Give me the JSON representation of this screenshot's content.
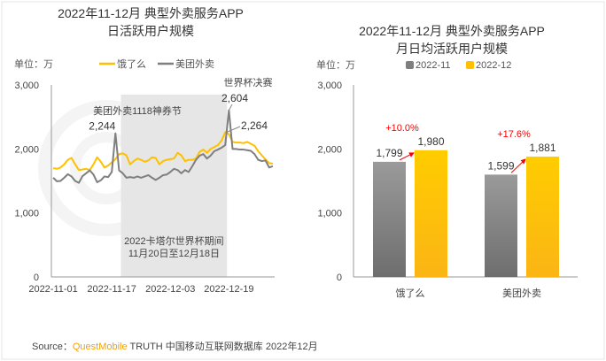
{
  "colors": {
    "eleme": "#FFC000",
    "meituan": "#7F7F7F",
    "growth": "#FF0000",
    "shade": "#E6E6E6",
    "brand": "#F5A000"
  },
  "source": {
    "prefix": "Source：",
    "brand": "QuestMobile",
    "suffix": " TRUTH 中国移动互联网数据库 2022年12月"
  },
  "watermark": "QUESTMOBILE",
  "chart_data": [
    {
      "type": "line",
      "title": "2022年11-12月 典型外卖服务APP",
      "subtitle": "日活跃用户规模",
      "unit_label": "单位：万",
      "legend": "top",
      "ylim": [
        0,
        3000
      ],
      "yticks": [
        "0",
        "1,000",
        "2,000",
        "3,000"
      ],
      "yticks_values": [
        0,
        1000,
        2000,
        3000
      ],
      "xticks": [
        "2022-11-01",
        "2022-11-17",
        "2022-12-03",
        "2022-12-19"
      ],
      "xticks_index": [
        0,
        16,
        32,
        48
      ],
      "x_start": "2022-11-01",
      "x_end": "2022-12-31",
      "shaded_range": [
        "2022-11-20",
        "2022-12-18"
      ],
      "shaded_label": [
        "2022卡塔尔世界杯期间",
        "11月20日至12月18日"
      ],
      "annotations": [
        {
          "text": "美团外卖1118神券节",
          "value_label": "2,244",
          "series": "美团外卖",
          "index": 17
        },
        {
          "text": "世界杯决赛",
          "value_label": "2,604",
          "series": "美团外卖",
          "index": 48
        },
        {
          "text": "",
          "value_label": "2,264",
          "series": "饿了么",
          "index": 47
        }
      ],
      "series": [
        {
          "name": "饿了么",
          "values": [
            1700,
            1690,
            1710,
            1760,
            1830,
            1860,
            1760,
            1670,
            1680,
            1690,
            1670,
            1760,
            1870,
            1800,
            1710,
            1740,
            1790,
            1840,
            1920,
            1930,
            1900,
            1760,
            1810,
            1850,
            1830,
            1800,
            1820,
            1870,
            1860,
            1760,
            1810,
            1830,
            1840,
            1850,
            1940,
            1900,
            1810,
            1830,
            1830,
            1850,
            1955,
            1990,
            1940,
            2000,
            2030,
            2060,
            2130,
            2264,
            2230,
            2110,
            2100,
            2100,
            2090,
            2110,
            2080,
            2050,
            1965,
            1900,
            1835,
            1780,
            1770
          ]
        },
        {
          "name": "美团外卖",
          "values": [
            1550,
            1495,
            1500,
            1550,
            1605,
            1570,
            1500,
            1470,
            1575,
            1620,
            1665,
            1600,
            1480,
            1510,
            1570,
            1560,
            1640,
            2244,
            1665,
            1620,
            1550,
            1560,
            1550,
            1570,
            1550,
            1570,
            1590,
            1550,
            1515,
            1550,
            1590,
            1600,
            1640,
            1690,
            1670,
            1620,
            1670,
            1640,
            1730,
            1830,
            1895,
            1920,
            1850,
            1895,
            1965,
            1990,
            2020,
            2060,
            2604,
            2000,
            2000,
            1990,
            1990,
            1980,
            1970,
            1920,
            1830,
            1810,
            1820,
            1710,
            1730
          ]
        }
      ]
    },
    {
      "type": "bar",
      "title": "2022年11-12月 典型外卖服务APP",
      "subtitle": "月日均活跃用户规模",
      "unit_label": "单位：万",
      "legend": "top",
      "ylim": [
        0,
        3000
      ],
      "yticks": [
        "0",
        "1,000",
        "2,000",
        "3,000"
      ],
      "yticks_values": [
        0,
        1000,
        2000,
        3000
      ],
      "categories": [
        "饿了么",
        "美团外卖"
      ],
      "series": [
        {
          "name": "2022-11",
          "values": [
            1799,
            1599
          ],
          "labels": [
            "1,799",
            "1,599"
          ]
        },
        {
          "name": "2022-12",
          "values": [
            1980,
            1881
          ],
          "labels": [
            "1,980",
            "1,881"
          ]
        }
      ],
      "growth_labels": [
        "+10.0%",
        "+17.6%"
      ]
    }
  ]
}
